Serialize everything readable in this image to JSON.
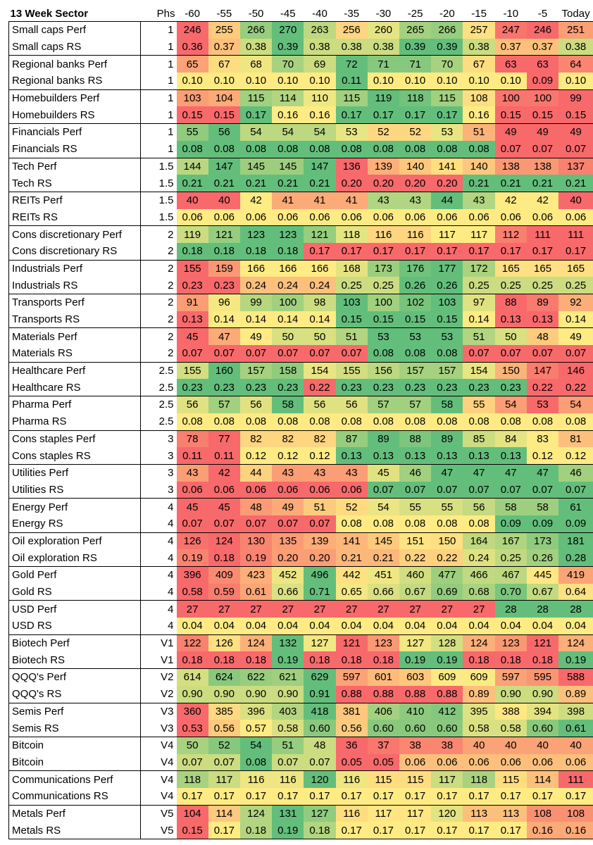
{
  "header": {
    "title": "13 Week Sector",
    "phs": "Phs",
    "cols": [
      "-60",
      "-55",
      "-50",
      "-45",
      "-40",
      "-35",
      "-30",
      "-25",
      "-20",
      "-15",
      "-10",
      "-5",
      "Today"
    ]
  },
  "groups": [
    {
      "rows": [
        {
          "name": "Small caps Perf",
          "phs": "1",
          "values": [
            "246",
            "255",
            "266",
            "270",
            "263",
            "256",
            "260",
            "265",
            "266",
            "257",
            "247",
            "246",
            "251"
          ]
        },
        {
          "name": "Small caps RS",
          "phs": "1",
          "values": [
            "0.36",
            "0.37",
            "0.38",
            "0.39",
            "0.38",
            "0.38",
            "0.38",
            "0.39",
            "0.39",
            "0.38",
            "0.37",
            "0.37",
            "0.38"
          ]
        }
      ]
    },
    {
      "rows": [
        {
          "name": "Regional banks Perf",
          "phs": "1",
          "values": [
            "65",
            "67",
            "68",
            "70",
            "69",
            "72",
            "71",
            "71",
            "70",
            "67",
            "63",
            "63",
            "64"
          ]
        },
        {
          "name": "Regional banks RS",
          "phs": "1",
          "values": [
            "0.10",
            "0.10",
            "0.10",
            "0.10",
            "0.10",
            "0.11",
            "0.10",
            "0.10",
            "0.10",
            "0.10",
            "0.10",
            "0.09",
            "0.10"
          ]
        }
      ]
    },
    {
      "rows": [
        {
          "name": "Homebuilders Perf",
          "phs": "1",
          "values": [
            "103",
            "104",
            "115",
            "114",
            "110",
            "115",
            "119",
            "118",
            "115",
            "108",
            "100",
            "100",
            "99"
          ]
        },
        {
          "name": "Homebuilders RS",
          "phs": "1",
          "values": [
            "0.15",
            "0.15",
            "0.17",
            "0.16",
            "0.16",
            "0.17",
            "0.17",
            "0.17",
            "0.17",
            "0.16",
            "0.15",
            "0.15",
            "0.15"
          ]
        }
      ]
    },
    {
      "rows": [
        {
          "name": "Financials Perf",
          "phs": "1",
          "values": [
            "55",
            "56",
            "54",
            "54",
            "54",
            "53",
            "52",
            "52",
            "53",
            "51",
            "49",
            "49",
            "49"
          ]
        },
        {
          "name": "Financials RS",
          "phs": "1",
          "values": [
            "0.08",
            "0.08",
            "0.08",
            "0.08",
            "0.08",
            "0.08",
            "0.08",
            "0.08",
            "0.08",
            "0.08",
            "0.07",
            "0.07",
            "0.07"
          ]
        }
      ]
    },
    {
      "rows": [
        {
          "name": "Tech Perf",
          "phs": "1.5",
          "values": [
            "144",
            "147",
            "145",
            "145",
            "147",
            "136",
            "139",
            "140",
            "141",
            "140",
            "138",
            "138",
            "137"
          ]
        },
        {
          "name": "Tech RS",
          "phs": "1.5",
          "values": [
            "0.21",
            "0.21",
            "0.21",
            "0.21",
            "0.21",
            "0.20",
            "0.20",
            "0.20",
            "0.20",
            "0.21",
            "0.21",
            "0.21",
            "0.21"
          ]
        }
      ]
    },
    {
      "rows": [
        {
          "name": "REITs Perf",
          "phs": "1.5",
          "values": [
            "40",
            "40",
            "42",
            "41",
            "41",
            "41",
            "43",
            "43",
            "44",
            "43",
            "42",
            "42",
            "40"
          ]
        },
        {
          "name": "REITs RS",
          "phs": "1.5",
          "values": [
            "0.06",
            "0.06",
            "0.06",
            "0.06",
            "0.06",
            "0.06",
            "0.06",
            "0.06",
            "0.06",
            "0.06",
            "0.06",
            "0.06",
            "0.06"
          ]
        }
      ]
    },
    {
      "rows": [
        {
          "name": "Cons discretionary Perf",
          "phs": "2",
          "values": [
            "119",
            "121",
            "123",
            "123",
            "121",
            "118",
            "116",
            "116",
            "117",
            "117",
            "112",
            "111",
            "111"
          ]
        },
        {
          "name": "Cons discretionary RS",
          "phs": "2",
          "values": [
            "0.18",
            "0.18",
            "0.18",
            "0.18",
            "0.17",
            "0.17",
            "0.17",
            "0.17",
            "0.17",
            "0.17",
            "0.17",
            "0.17",
            "0.17"
          ]
        }
      ]
    },
    {
      "rows": [
        {
          "name": "Industrials Perf",
          "phs": "2",
          "values": [
            "155",
            "159",
            "166",
            "166",
            "166",
            "168",
            "173",
            "176",
            "177",
            "172",
            "165",
            "165",
            "165"
          ]
        },
        {
          "name": "Industrials RS",
          "phs": "2",
          "values": [
            "0.23",
            "0.23",
            "0.24",
            "0.24",
            "0.24",
            "0.25",
            "0.25",
            "0.26",
            "0.26",
            "0.25",
            "0.25",
            "0.25",
            "0.25"
          ]
        }
      ]
    },
    {
      "rows": [
        {
          "name": "Transports Perf",
          "phs": "2",
          "values": [
            "91",
            "96",
            "99",
            "100",
            "98",
            "103",
            "100",
            "102",
            "103",
            "97",
            "88",
            "89",
            "92"
          ]
        },
        {
          "name": "Transports RS",
          "phs": "2",
          "values": [
            "0.13",
            "0.14",
            "0.14",
            "0.14",
            "0.14",
            "0.15",
            "0.15",
            "0.15",
            "0.15",
            "0.14",
            "0.13",
            "0.13",
            "0.14"
          ]
        }
      ]
    },
    {
      "rows": [
        {
          "name": "Materials Perf",
          "phs": "2",
          "values": [
            "45",
            "47",
            "49",
            "50",
            "50",
            "51",
            "53",
            "53",
            "53",
            "51",
            "50",
            "48",
            "49"
          ]
        },
        {
          "name": "Materials RS",
          "phs": "2",
          "values": [
            "0.07",
            "0.07",
            "0.07",
            "0.07",
            "0.07",
            "0.07",
            "0.08",
            "0.08",
            "0.08",
            "0.07",
            "0.07",
            "0.07",
            "0.07"
          ]
        }
      ]
    },
    {
      "rows": [
        {
          "name": "Healthcare Perf",
          "phs": "2.5",
          "values": [
            "155",
            "160",
            "157",
            "158",
            "154",
            "155",
            "156",
            "157",
            "157",
            "154",
            "150",
            "147",
            "146"
          ]
        },
        {
          "name": "Healthcare RS",
          "phs": "2.5",
          "values": [
            "0.23",
            "0.23",
            "0.23",
            "0.23",
            "0.22",
            "0.23",
            "0.23",
            "0.23",
            "0.23",
            "0.23",
            "0.23",
            "0.22",
            "0.22"
          ]
        }
      ]
    },
    {
      "rows": [
        {
          "name": "Pharma Perf",
          "phs": "2.5",
          "values": [
            "56",
            "57",
            "56",
            "58",
            "56",
            "56",
            "57",
            "57",
            "58",
            "55",
            "54",
            "53",
            "54"
          ]
        },
        {
          "name": "Pharma RS",
          "phs": "2.5",
          "values": [
            "0.08",
            "0.08",
            "0.08",
            "0.08",
            "0.08",
            "0.08",
            "0.08",
            "0.08",
            "0.08",
            "0.08",
            "0.08",
            "0.08",
            "0.08"
          ]
        }
      ]
    },
    {
      "rows": [
        {
          "name": "Cons staples Perf",
          "phs": "3",
          "values": [
            "78",
            "77",
            "82",
            "82",
            "82",
            "87",
            "89",
            "88",
            "89",
            "85",
            "84",
            "83",
            "81"
          ]
        },
        {
          "name": "Cons staples RS",
          "phs": "3",
          "values": [
            "0.11",
            "0.11",
            "0.12",
            "0.12",
            "0.12",
            "0.13",
            "0.13",
            "0.13",
            "0.13",
            "0.13",
            "0.13",
            "0.12",
            "0.12"
          ]
        }
      ]
    },
    {
      "rows": [
        {
          "name": "Utilities Perf",
          "phs": "3",
          "values": [
            "43",
            "42",
            "44",
            "43",
            "43",
            "43",
            "45",
            "46",
            "47",
            "47",
            "47",
            "47",
            "46"
          ]
        },
        {
          "name": "Utilities RS",
          "phs": "3",
          "values": [
            "0.06",
            "0.06",
            "0.06",
            "0.06",
            "0.06",
            "0.06",
            "0.07",
            "0.07",
            "0.07",
            "0.07",
            "0.07",
            "0.07",
            "0.07"
          ]
        }
      ]
    },
    {
      "rows": [
        {
          "name": "Energy Perf",
          "phs": "4",
          "values": [
            "45",
            "45",
            "48",
            "49",
            "51",
            "52",
            "54",
            "55",
            "55",
            "56",
            "58",
            "58",
            "61"
          ]
        },
        {
          "name": "Energy RS",
          "phs": "4",
          "values": [
            "0.07",
            "0.07",
            "0.07",
            "0.07",
            "0.07",
            "0.08",
            "0.08",
            "0.08",
            "0.08",
            "0.08",
            "0.09",
            "0.09",
            "0.09"
          ]
        }
      ]
    },
    {
      "rows": [
        {
          "name": "Oil exploration Perf",
          "phs": "4",
          "values": [
            "126",
            "124",
            "130",
            "135",
            "139",
            "141",
            "145",
            "151",
            "150",
            "164",
            "167",
            "173",
            "181"
          ]
        },
        {
          "name": "Oil exploration RS",
          "phs": "4",
          "values": [
            "0.19",
            "0.18",
            "0.19",
            "0.20",
            "0.20",
            "0.21",
            "0.21",
            "0.22",
            "0.22",
            "0.24",
            "0.25",
            "0.26",
            "0.28"
          ]
        }
      ]
    },
    {
      "rows": [
        {
          "name": "Gold Perf",
          "phs": "4",
          "values": [
            "396",
            "409",
            "423",
            "452",
            "496",
            "442",
            "451",
            "460",
            "477",
            "466",
            "467",
            "445",
            "419"
          ]
        },
        {
          "name": "Gold RS",
          "phs": "4",
          "values": [
            "0.58",
            "0.59",
            "0.61",
            "0.66",
            "0.71",
            "0.65",
            "0.66",
            "0.67",
            "0.69",
            "0.68",
            "0.70",
            "0.67",
            "0.64"
          ]
        }
      ]
    },
    {
      "rows": [
        {
          "name": "USD Perf",
          "phs": "4",
          "values": [
            "27",
            "27",
            "27",
            "27",
            "27",
            "27",
            "27",
            "27",
            "27",
            "27",
            "28",
            "28",
            "28"
          ]
        },
        {
          "name": "USD RS",
          "phs": "4",
          "values": [
            "0.04",
            "0.04",
            "0.04",
            "0.04",
            "0.04",
            "0.04",
            "0.04",
            "0.04",
            "0.04",
            "0.04",
            "0.04",
            "0.04",
            "0.04"
          ]
        }
      ]
    },
    {
      "rows": [
        {
          "name": "Biotech Perf",
          "phs": "V1",
          "values": [
            "122",
            "126",
            "124",
            "132",
            "127",
            "121",
            "123",
            "127",
            "128",
            "124",
            "123",
            "121",
            "124"
          ]
        },
        {
          "name": "Biotech RS",
          "phs": "V1",
          "values": [
            "0.18",
            "0.18",
            "0.18",
            "0.19",
            "0.18",
            "0.18",
            "0.18",
            "0.19",
            "0.19",
            "0.18",
            "0.18",
            "0.18",
            "0.19"
          ]
        }
      ]
    },
    {
      "rows": [
        {
          "name": "QQQ's Perf",
          "phs": "V2",
          "values": [
            "614",
            "624",
            "622",
            "621",
            "629",
            "597",
            "601",
            "603",
            "609",
            "609",
            "597",
            "595",
            "588"
          ]
        },
        {
          "name": "QQQ's RS",
          "phs": "V2",
          "values": [
            "0.90",
            "0.90",
            "0.90",
            "0.90",
            "0.91",
            "0.88",
            "0.88",
            "0.88",
            "0.88",
            "0.89",
            "0.90",
            "0.90",
            "0.89"
          ]
        }
      ]
    },
    {
      "rows": [
        {
          "name": "Semis Perf",
          "phs": "V3",
          "values": [
            "360",
            "385",
            "396",
            "403",
            "418",
            "381",
            "406",
            "410",
            "412",
            "395",
            "388",
            "394",
            "398"
          ]
        },
        {
          "name": "Semis RS",
          "phs": "V3",
          "values": [
            "0.53",
            "0.56",
            "0.57",
            "0.58",
            "0.60",
            "0.56",
            "0.60",
            "0.60",
            "0.60",
            "0.58",
            "0.58",
            "0.60",
            "0.61"
          ]
        }
      ]
    },
    {
      "rows": [
        {
          "name": "Bitcoin",
          "phs": "V4",
          "values": [
            "50",
            "52",
            "54",
            "51",
            "48",
            "36",
            "37",
            "38",
            "38",
            "40",
            "40",
            "40",
            "40"
          ]
        },
        {
          "name": "Bitcoin",
          "phs": "V4",
          "values": [
            "0.07",
            "0.07",
            "0.08",
            "0.07",
            "0.07",
            "0.05",
            "0.05",
            "0.06",
            "0.06",
            "0.06",
            "0.06",
            "0.06",
            "0.06"
          ]
        }
      ]
    },
    {
      "rows": [
        {
          "name": "Communications Perf",
          "phs": "V4",
          "values": [
            "118",
            "117",
            "116",
            "116",
            "120",
            "116",
            "115",
            "115",
            "117",
            "118",
            "115",
            "114",
            "111"
          ]
        },
        {
          "name": "Communications RS",
          "phs": "V4",
          "values": [
            "0.17",
            "0.17",
            "0.17",
            "0.17",
            "0.17",
            "0.17",
            "0.17",
            "0.17",
            "0.17",
            "0.17",
            "0.17",
            "0.17",
            "0.17"
          ]
        }
      ]
    },
    {
      "rows": [
        {
          "name": "Metals Perf",
          "phs": "V5",
          "values": [
            "104",
            "114",
            "124",
            "131",
            "127",
            "116",
            "117",
            "117",
            "120",
            "113",
            "113",
            "108",
            "108"
          ]
        },
        {
          "name": "Metals RS",
          "phs": "V5",
          "values": [
            "0.15",
            "0.17",
            "0.18",
            "0.19",
            "0.18",
            "0.17",
            "0.17",
            "0.17",
            "0.17",
            "0.17",
            "0.17",
            "0.16",
            "0.16"
          ]
        }
      ]
    }
  ],
  "colors": {
    "low": "#f8696b",
    "mid": "#ffeb84",
    "high": "#63be7b"
  }
}
